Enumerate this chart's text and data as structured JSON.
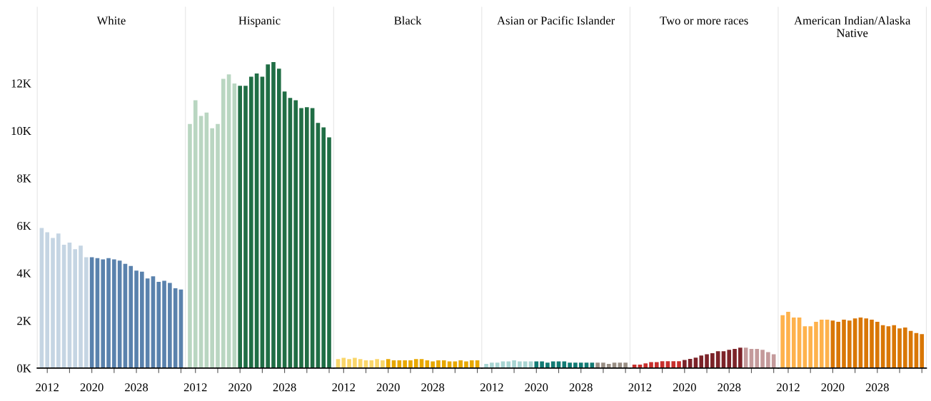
{
  "chart_data": [
    {
      "type": "bar",
      "title": "White",
      "xlim": [
        2010.2,
        2036.8
      ],
      "xticks": [
        2012,
        {
          "value": 2016,
          "label": null
        },
        2020,
        {
          "value": 2024,
          "label": null
        },
        2028,
        {
          "value": 2032,
          "label": null
        },
        {
          "value": 2036,
          "label": null
        }
      ],
      "ylim": [
        0,
        15200
      ],
      "yticks": [
        {
          "value": 0,
          "label": "0K"
        },
        {
          "value": 2000,
          "label": "2K"
        },
        {
          "value": 4000,
          "label": "4K"
        },
        {
          "value": 6000,
          "label": "6K"
        },
        {
          "value": 8000,
          "label": "8K"
        },
        {
          "value": 10000,
          "label": "10K"
        },
        {
          "value": 12000,
          "label": "12K"
        }
      ],
      "grid": false,
      "series": [
        {
          "color": "#c5d5e3",
          "x": [
            2011,
            2012,
            2013,
            2014,
            2015,
            2016,
            2017,
            2018,
            2019
          ],
          "values": [
            5900,
            5720,
            5480,
            5670,
            5200,
            5290,
            5010,
            5160,
            4670
          ]
        },
        {
          "color": "#5a82ad",
          "x": [
            2020,
            2021,
            2022,
            2023,
            2024,
            2025,
            2026,
            2027,
            2028,
            2029,
            2030,
            2031,
            2032,
            2033,
            2034,
            2035,
            2036
          ],
          "values": [
            4670,
            4630,
            4580,
            4630,
            4580,
            4530,
            4390,
            4300,
            4110,
            4060,
            3780,
            3870,
            3630,
            3680,
            3590,
            3360,
            3310
          ]
        }
      ]
    },
    {
      "type": "bar",
      "title": "Hispanic",
      "tick_labels": "x",
      "xlim": [
        2010.2,
        2036.8
      ],
      "xticks": [
        2012,
        {
          "value": 2016,
          "label": null
        },
        2020,
        {
          "value": 2024,
          "label": null
        },
        2028,
        {
          "value": 2032,
          "label": null
        },
        {
          "value": 2036,
          "label": null
        }
      ],
      "ylim": [
        0,
        15200
      ],
      "grid": false,
      "series": [
        {
          "color": "#b9d6c1",
          "x": [
            2011,
            2012,
            2013,
            2014,
            2015,
            2016,
            2017,
            2018,
            2019
          ],
          "values": [
            10280,
            11280,
            10620,
            10760,
            10100,
            10280,
            12180,
            12370,
            11990
          ]
        },
        {
          "color": "#206e45",
          "x": [
            2020,
            2021,
            2022,
            2023,
            2024,
            2025,
            2026,
            2027,
            2028,
            2029,
            2030,
            2031,
            2032,
            2033,
            2034,
            2035,
            2036
          ],
          "values": [
            11890,
            11890,
            12270,
            12410,
            12270,
            12790,
            12890,
            12610,
            11650,
            11380,
            11280,
            10950,
            10990,
            10950,
            10330,
            10140,
            9720
          ]
        }
      ]
    },
    {
      "type": "bar",
      "title": "Black",
      "tick_labels": "x",
      "xlim": [
        2010.2,
        2036.8
      ],
      "xticks": [
        2012,
        {
          "value": 2016,
          "label": null
        },
        2020,
        {
          "value": 2024,
          "label": null
        },
        2028,
        {
          "value": 2032,
          "label": null
        },
        {
          "value": 2036,
          "label": null
        }
      ],
      "ylim": [
        0,
        15200
      ],
      "grid": false,
      "series": [
        {
          "color": "#f9d66a",
          "x": [
            2011,
            2012,
            2013,
            2014,
            2015,
            2016,
            2017,
            2018,
            2019
          ],
          "values": [
            380,
            430,
            380,
            430,
            380,
            330,
            330,
            380,
            330
          ]
        },
        {
          "color": "#e8a800",
          "x": [
            2020,
            2021,
            2022,
            2023,
            2024,
            2025,
            2026,
            2027,
            2028,
            2029,
            2030,
            2031,
            2032,
            2033,
            2034,
            2035,
            2036
          ],
          "values": [
            380,
            330,
            330,
            330,
            330,
            380,
            380,
            330,
            280,
            330,
            330,
            280,
            280,
            330,
            280,
            330,
            330
          ]
        }
      ]
    },
    {
      "type": "bar",
      "title": "Asian or Pacific Islander",
      "tick_labels": "x",
      "xlim": [
        2010.2,
        2036.8
      ],
      "xticks": [
        2012,
        {
          "value": 2016,
          "label": null
        },
        2020,
        {
          "value": 2024,
          "label": null
        },
        2028,
        {
          "value": 2032,
          "label": null
        },
        {
          "value": 2036,
          "label": null
        }
      ],
      "ylim": [
        0,
        15200
      ],
      "grid": false,
      "series": [
        {
          "color": "#a8d5d2",
          "x": [
            2011,
            2012,
            2013,
            2014,
            2015,
            2016,
            2017,
            2018,
            2019
          ],
          "values": [
            180,
            230,
            230,
            280,
            280,
            330,
            280,
            280,
            280
          ]
        },
        {
          "color": "#137b74",
          "x": [
            2020,
            2021,
            2022,
            2023,
            2024,
            2025,
            2026,
            2027,
            2028,
            2029,
            2030
          ],
          "values": [
            280,
            280,
            230,
            280,
            280,
            280,
            230,
            230,
            230,
            230,
            230
          ]
        },
        {
          "color": "#9a8f85",
          "x": [
            2031,
            2032,
            2033,
            2034,
            2035,
            2036
          ],
          "values": [
            230,
            230,
            180,
            230,
            230,
            230
          ]
        }
      ]
    },
    {
      "type": "bar",
      "title": "Two or more races",
      "tick_labels": "x",
      "xlim": [
        2010.2,
        2036.8
      ],
      "xticks": [
        2012,
        {
          "value": 2016,
          "label": null
        },
        2020,
        {
          "value": 2024,
          "label": null
        },
        2028,
        {
          "value": 2032,
          "label": null
        },
        {
          "value": 2036,
          "label": null
        }
      ],
      "ylim": [
        0,
        15200
      ],
      "grid": false,
      "series": [
        {
          "color": "#c8302e",
          "x": [
            2011,
            2012,
            2013,
            2014,
            2015,
            2016,
            2017,
            2018,
            2019
          ],
          "values": [
            150,
            150,
            200,
            250,
            250,
            290,
            290,
            290,
            290
          ]
        },
        {
          "color": "#7c2329",
          "x": [
            2020,
            2021,
            2022,
            2023,
            2024,
            2025,
            2026,
            2027,
            2028,
            2029,
            2030
          ],
          "values": [
            340,
            390,
            440,
            530,
            580,
            630,
            710,
            710,
            770,
            810,
            860
          ]
        },
        {
          "color": "#c49a9b",
          "x": [
            2031,
            2032,
            2033,
            2034,
            2035,
            2036
          ],
          "values": [
            860,
            810,
            810,
            770,
            670,
            580
          ]
        }
      ]
    },
    {
      "type": "bar",
      "title": "American Indian/Alaska Native",
      "tick_labels": "x",
      "xlim": [
        2010.2,
        2036.8
      ],
      "xticks": [
        2012,
        {
          "value": 2016,
          "label": null
        },
        2020,
        {
          "value": 2024,
          "label": null
        },
        2028,
        {
          "value": 2032,
          "label": null
        },
        {
          "value": 2036,
          "label": null
        }
      ],
      "ylim": [
        0,
        15200
      ],
      "grid": false,
      "series": [
        {
          "color": "#feb24c",
          "x": [
            2011,
            2012,
            2013,
            2014,
            2015,
            2016,
            2017,
            2018,
            2019
          ],
          "values": [
            2230,
            2370,
            2130,
            2130,
            1760,
            1760,
            1950,
            2040,
            2040
          ]
        },
        {
          "color": "#d97706",
          "x": [
            2020,
            2021,
            2022,
            2023,
            2024,
            2025,
            2026,
            2027,
            2028,
            2029,
            2030,
            2031,
            2032,
            2033,
            2034,
            2035,
            2036
          ],
          "values": [
            2000,
            1950,
            2040,
            2000,
            2090,
            2130,
            2090,
            2040,
            1950,
            1810,
            1760,
            1810,
            1670,
            1710,
            1570,
            1480,
            1430
          ]
        }
      ]
    }
  ]
}
